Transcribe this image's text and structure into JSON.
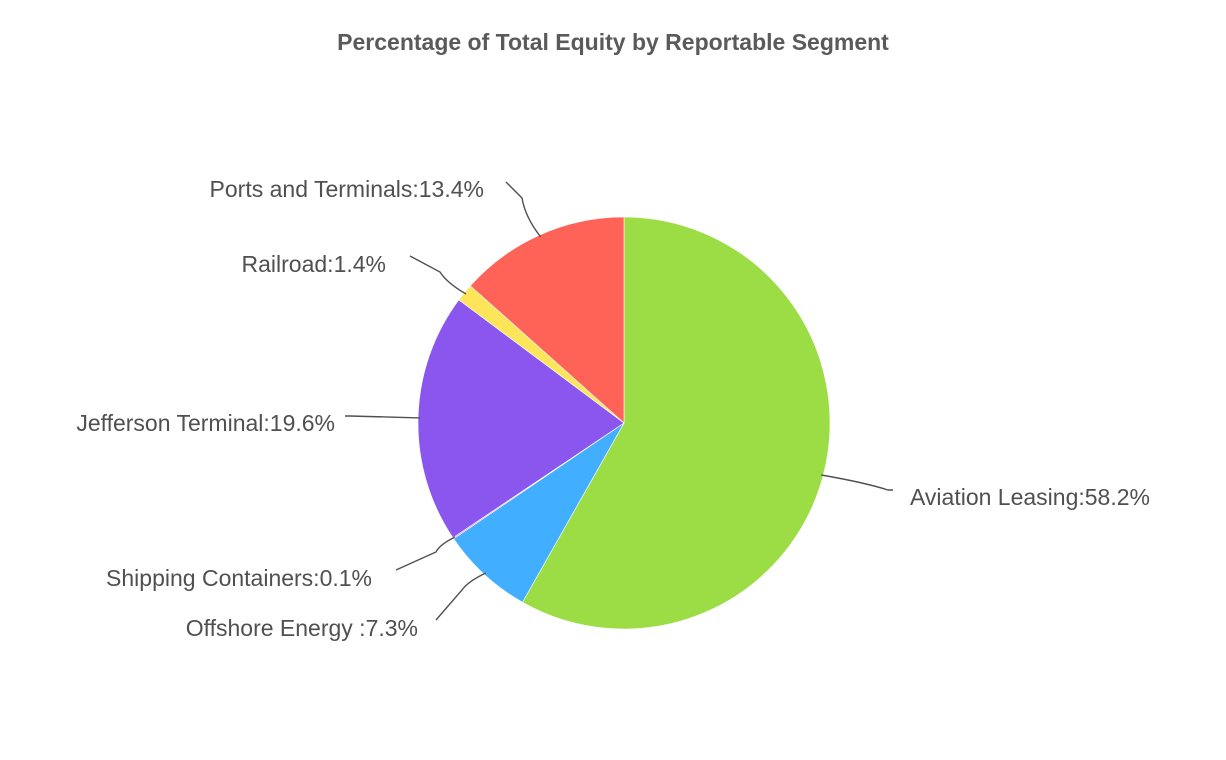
{
  "chart_data": {
    "type": "pie",
    "title": "Percentage of Total Equity by Reportable Segment",
    "slices": [
      {
        "label": "Aviation Leasing",
        "value": 58.2,
        "display": "Aviation Leasing:58.2%",
        "color": "#9cdc45"
      },
      {
        "label": "Offshore Energy ",
        "value": 7.3,
        "display": "Offshore Energy :7.3%",
        "color": "#42aeff"
      },
      {
        "label": "Shipping Containers",
        "value": 0.1,
        "display": "Shipping Containers:0.1%",
        "color": "#d07ad8"
      },
      {
        "label": "Jefferson Terminal",
        "value": 19.6,
        "display": "Jefferson Terminal:19.6%",
        "color": "#8b56ee"
      },
      {
        "label": "Railroad",
        "value": 1.4,
        "display": "Railroad:1.4%",
        "color": "#fce558"
      },
      {
        "label": "Ports and Terminals",
        "value": 13.4,
        "display": "Ports and Terminals:13.4%",
        "color": "#ff6257"
      }
    ],
    "start_angle": "12 o'clock",
    "direction": "clockwise",
    "legend": "none"
  }
}
